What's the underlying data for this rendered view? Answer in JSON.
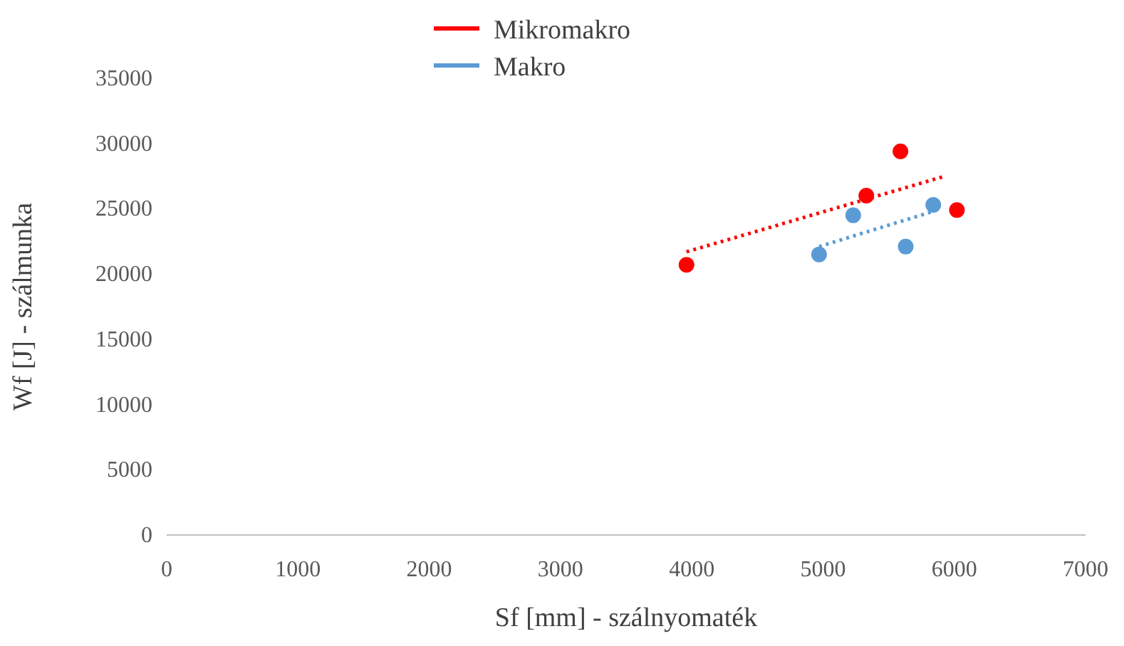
{
  "chart_data": {
    "type": "scatter",
    "xlabel": "Sf [mm] - szálnyomaték",
    "ylabel": "Wf [J] - szálmunka",
    "xlim": [
      0,
      7000
    ],
    "xticks": [
      0,
      1000,
      2000,
      3000,
      4000,
      5000,
      6000,
      7000
    ],
    "ylim": [
      0,
      35000
    ],
    "yticks": [
      0,
      5000,
      10000,
      15000,
      20000,
      25000,
      30000,
      35000
    ],
    "grid": false,
    "legend": "top",
    "marker": "circle",
    "series": [
      {
        "name": "Mikromakro",
        "color": "#ff0000",
        "x": [
          3960,
          5330,
          5590,
          6020
        ],
        "values": [
          20700,
          26000,
          29400,
          24900
        ]
      },
      {
        "name": "Makro",
        "color": "#5b9bd5",
        "x": [
          4970,
          5230,
          5630,
          5840
        ],
        "values": [
          21500,
          24500,
          22100,
          25300
        ]
      },
      {
        "type": "line",
        "color": "#ff0000",
        "line_style": "dotted",
        "marker": "none",
        "x": [
          3960,
          5930
        ],
        "values": [
          21700,
          27500
        ]
      },
      {
        "type": "line",
        "color": "#5b9bd5",
        "line_style": "dotted",
        "marker": "none",
        "x": [
          4970,
          5840
        ],
        "values": [
          22100,
          24800
        ]
      }
    ]
  }
}
